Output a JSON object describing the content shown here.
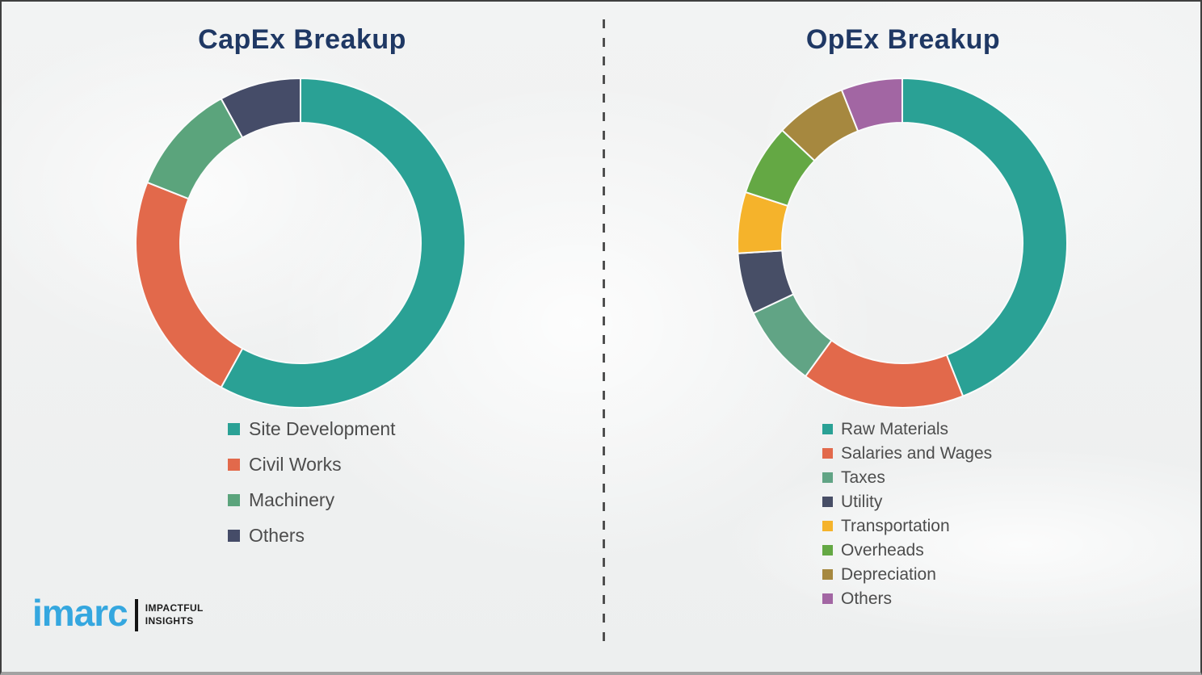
{
  "page": {
    "background_color": "#eef0f0",
    "border_color": "#3f3f3f",
    "bottom_border_color": "#a2a2a2",
    "divider_color": "#4f4f4f",
    "title_color": "#1f3864",
    "legend_text_color": "#4d4d4d"
  },
  "chart_data": [
    {
      "type": "pie",
      "subtype": "donut",
      "title": "CapEx Breakup",
      "categories": [
        "Site Development",
        "Civil Works",
        "Machinery",
        "Others"
      ],
      "values": [
        58,
        23,
        11,
        8
      ],
      "values_note": "percent, estimated from arc angles (no data labels shown)",
      "colors": [
        "#2AA195",
        "#E2694B",
        "#5BA47C",
        "#454C68"
      ],
      "start_angle_deg": 0,
      "direction": "clockwise",
      "inner_radius_ratio": 0.73,
      "legend_position": "below-left",
      "grid": false
    },
    {
      "type": "pie",
      "subtype": "donut",
      "title": "OpEx Breakup",
      "categories": [
        "Raw Materials",
        "Salaries and Wages",
        "Taxes",
        "Utility",
        "Transportation",
        "Overheads",
        "Depreciation",
        "Others"
      ],
      "values": [
        44,
        16,
        8,
        6,
        6,
        7,
        7,
        6
      ],
      "values_note": "percent, estimated from arc angles (no data labels shown)",
      "colors": [
        "#2AA195",
        "#E2694B",
        "#61A485",
        "#474E66",
        "#F5B32B",
        "#64A844",
        "#A6883F",
        "#A266A3"
      ],
      "start_angle_deg": 0,
      "direction": "clockwise",
      "inner_radius_ratio": 0.73,
      "legend_position": "below-left",
      "grid": false
    }
  ],
  "logo": {
    "brand": "imarc",
    "brand_color": "#35a7df",
    "tagline_line1": "IMPACTFUL",
    "tagline_line2": "INSIGHTS"
  }
}
